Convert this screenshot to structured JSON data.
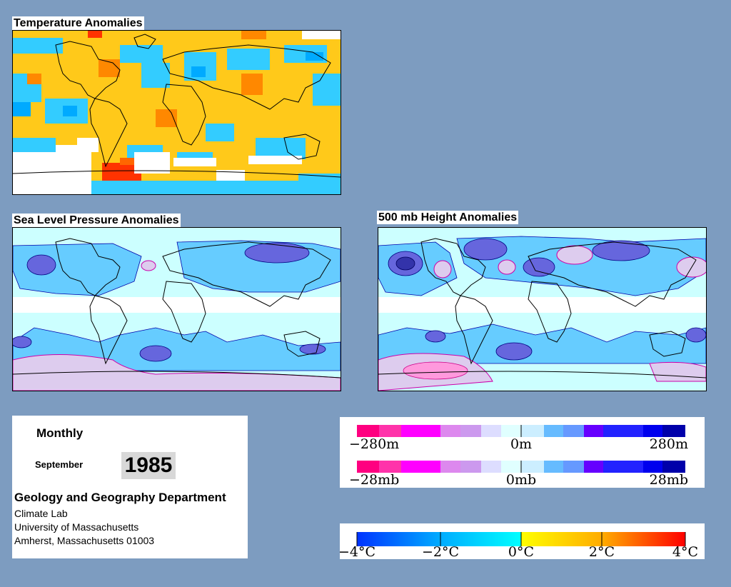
{
  "maps": {
    "temperature": {
      "title": "Temperature Anomalies"
    },
    "pressure": {
      "title": "Sea Level Pressure Anomalies"
    },
    "height": {
      "title": "500 mb Height Anomalies"
    }
  },
  "info": {
    "period": "Monthly",
    "month": "September",
    "year": "1985",
    "department": "Geology and Geography Department",
    "lab": "Climate Lab",
    "university": "University of Massachusetts",
    "address": "Amherst, Massachusetts 01003"
  },
  "legends": {
    "height": {
      "labels": [
        "−280m",
        "0m",
        "280m"
      ]
    },
    "pressure": {
      "labels": [
        "−28mb",
        "0mb",
        "28mb"
      ]
    },
    "temperature": {
      "labels": [
        "−4°C",
        "−2°C",
        "0°C",
        "2°C",
        "4°C"
      ]
    }
  },
  "colors": {
    "background": "#7d9cc0",
    "anomaly_scale": [
      "#ff0080",
      "#ff33aa",
      "#ff00ff",
      "#dd88ee",
      "#cc99ee",
      "#ddddff",
      "#e0ffff",
      "#cceeff",
      "#66bbff",
      "#6699ff",
      "#7777ee",
      "#6600ff",
      "#2222ff",
      "#0000ee",
      "#0000aa"
    ],
    "temperature_scale": [
      "#0033ff",
      "#00aaff",
      "#00ffff",
      "#ffff00",
      "#ffaa00",
      "#ff0000"
    ]
  }
}
